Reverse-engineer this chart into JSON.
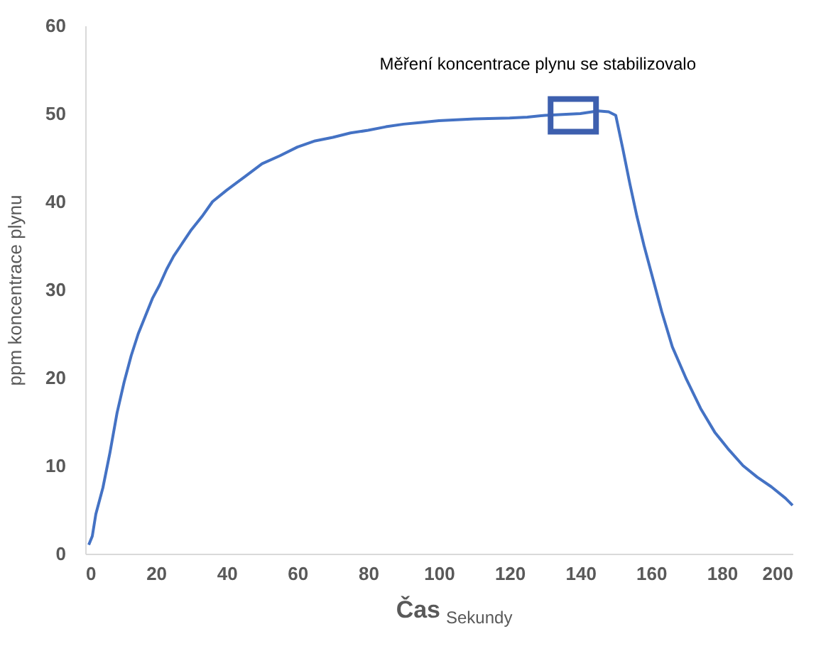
{
  "chart_data": {
    "type": "line",
    "xlabel": "Čas $_{Sekundy}$",
    "ylabel": "ppm koncentrace plynu",
    "x": [
      1,
      2,
      3,
      5,
      7,
      9,
      11,
      13,
      15,
      17,
      19,
      21,
      23,
      25,
      27,
      30,
      33,
      36,
      40,
      45,
      50,
      55,
      60,
      65,
      70,
      75,
      80,
      85,
      90,
      95,
      100,
      110,
      120,
      125,
      130,
      135,
      140,
      145,
      148,
      150,
      152,
      154,
      156,
      158,
      160,
      163,
      166,
      170,
      174,
      178,
      182,
      186,
      190,
      194,
      198,
      200
    ],
    "series": [
      {
        "color": "#4472c4",
        "values": [
          1,
          2,
          4.5,
          7.5,
          11.5,
          16,
          19.5,
          22.5,
          25,
          27,
          29,
          30.5,
          32.3,
          33.8,
          35,
          36.8,
          38.3,
          40,
          41.3,
          42.8,
          44.3,
          45.2,
          46.2,
          46.9,
          47.3,
          47.8,
          48.1,
          48.5,
          48.8,
          49,
          49.2,
          49.4,
          49.5,
          49.6,
          49.8,
          49.9,
          50,
          50.3,
          50.2,
          49.8,
          46,
          42,
          38.3,
          35,
          32,
          27.5,
          23.5,
          19.8,
          16.5,
          13.8,
          11.8,
          10,
          8.7,
          7.6,
          6.3,
          5.5
        ]
      }
    ],
    "xlim": [
      0,
      200
    ],
    "xticks": [
      0,
      20,
      40,
      60,
      80,
      100,
      120,
      140,
      160,
      180,
      200
    ],
    "ylim": [
      0,
      60
    ],
    "yticks": [
      0,
      10,
      20,
      30,
      40,
      50,
      60
    ],
    "grid": false,
    "marker": "none",
    "line_style": "solid",
    "annotations": [
      {
        "text": "Měření koncentrace plynu se stabilizovalo",
        "x": 138,
        "y": 49.8
      }
    ]
  }
}
